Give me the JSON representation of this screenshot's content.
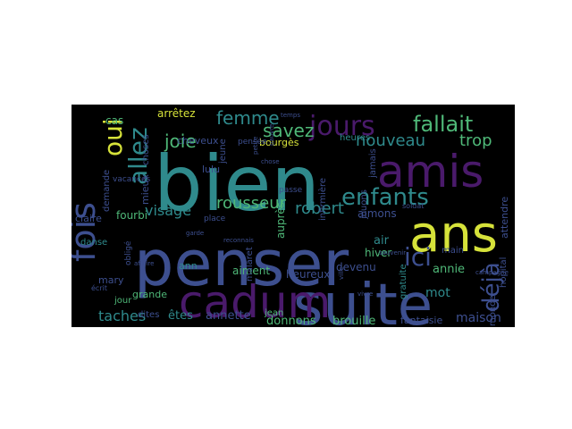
{
  "wordcloud": {
    "background": "#000000",
    "palette": {
      "purple": "#4a1a6b",
      "blue": "#3d4f8f",
      "teal": "#2f8a8c",
      "green": "#4fb878",
      "yellow": "#d6e23a"
    },
    "words": [
      {
        "text": "bien",
        "color": "teal"
      },
      {
        "text": "penser",
        "color": "blue"
      },
      {
        "text": "suite",
        "color": "blue"
      },
      {
        "text": "cadum",
        "color": "purple"
      },
      {
        "text": "ans",
        "color": "yellow"
      },
      {
        "text": "amis",
        "color": "purple"
      },
      {
        "text": "fois",
        "color": "blue"
      },
      {
        "text": "jours",
        "color": "purple"
      },
      {
        "text": "enfants",
        "color": "teal"
      },
      {
        "text": "fallait",
        "color": "green"
      },
      {
        "text": "oui",
        "color": "yellow"
      },
      {
        "text": "allez",
        "color": "teal"
      },
      {
        "text": "déjà",
        "color": "blue"
      },
      {
        "text": "ici",
        "color": "blue"
      },
      {
        "text": "femme",
        "color": "teal"
      },
      {
        "text": "joie",
        "color": "green"
      },
      {
        "text": "savez",
        "color": "green"
      },
      {
        "text": "nouveau",
        "color": "teal"
      },
      {
        "text": "trop",
        "color": "green"
      },
      {
        "text": "rousseur",
        "color": "green"
      },
      {
        "text": "visage",
        "color": "teal"
      },
      {
        "text": "robert",
        "color": "teal"
      },
      {
        "text": "taches",
        "color": "teal"
      },
      {
        "text": "êtes",
        "color": "teal"
      },
      {
        "text": "annette",
        "color": "blue"
      },
      {
        "text": "arrêtez",
        "color": "yellow"
      },
      {
        "text": "aimons",
        "color": "blue"
      },
      {
        "text": "air",
        "color": "teal"
      },
      {
        "text": "hiver",
        "color": "green"
      },
      {
        "text": "annie",
        "color": "green"
      },
      {
        "text": "mot",
        "color": "teal"
      },
      {
        "text": "maison",
        "color": "blue"
      },
      {
        "text": "donnons",
        "color": "green"
      },
      {
        "text": "brouille",
        "color": "green"
      },
      {
        "text": "fantaisie",
        "color": "blue"
      },
      {
        "text": "jean",
        "color": "green"
      },
      {
        "text": "aiment",
        "color": "green"
      },
      {
        "text": "heureux",
        "color": "blue"
      },
      {
        "text": "devenu",
        "color": "blue"
      },
      {
        "text": "grande",
        "color": "green"
      },
      {
        "text": "ann",
        "color": "teal"
      },
      {
        "text": "mary",
        "color": "blue"
      },
      {
        "text": "jour",
        "color": "green"
      },
      {
        "text": "dites",
        "color": "blue"
      },
      {
        "text": "fourbi",
        "color": "green"
      },
      {
        "text": "claire",
        "color": "blue"
      },
      {
        "text": "danse",
        "color": "teal"
      },
      {
        "text": "mieux",
        "color": "blue"
      },
      {
        "text": "cheveux",
        "color": "blue"
      },
      {
        "text": "bourgès",
        "color": "yellow"
      },
      {
        "text": "lulu",
        "color": "blue"
      },
      {
        "text": "heures",
        "color": "teal"
      },
      {
        "text": "jamais",
        "color": "blue"
      },
      {
        "text": "jouons",
        "color": "blue"
      },
      {
        "text": "infirmière",
        "color": "blue"
      },
      {
        "text": "auprès",
        "color": "green"
      },
      {
        "text": "attendre",
        "color": "blue"
      },
      {
        "text": "hôpital",
        "color": "blue"
      },
      {
        "text": "monde",
        "color": "blue"
      },
      {
        "text": "cas",
        "color": "green"
      },
      {
        "text": "choses",
        "color": "blue"
      },
      {
        "text": "demande",
        "color": "blue"
      },
      {
        "text": "vacances",
        "color": "blue"
      },
      {
        "text": "main",
        "color": "blue"
      },
      {
        "text": "place",
        "color": "blue"
      },
      {
        "text": "passe",
        "color": "blue"
      },
      {
        "text": "pensée",
        "color": "blue"
      },
      {
        "text": "malaret",
        "color": "blue"
      },
      {
        "text": "gratuite",
        "color": "teal"
      },
      {
        "text": "jeune",
        "color": "blue"
      },
      {
        "text": "écrit",
        "color": "blue"
      },
      {
        "text": "obligé",
        "color": "blue"
      },
      {
        "text": "reconnais",
        "color": "blue"
      },
      {
        "text": "soldat",
        "color": "blue"
      },
      {
        "text": "temps",
        "color": "blue"
      },
      {
        "text": "ville",
        "color": "blue"
      },
      {
        "text": "vivre",
        "color": "blue"
      },
      {
        "text": "chose",
        "color": "blue"
      },
      {
        "text": "pauvre",
        "color": "blue"
      },
      {
        "text": "petite",
        "color": "blue"
      },
      {
        "text": "affaire",
        "color": "blue"
      },
      {
        "text": "campagne",
        "color": "blue"
      },
      {
        "text": "souvenir",
        "color": "blue"
      },
      {
        "text": "garde",
        "color": "blue"
      }
    ]
  }
}
